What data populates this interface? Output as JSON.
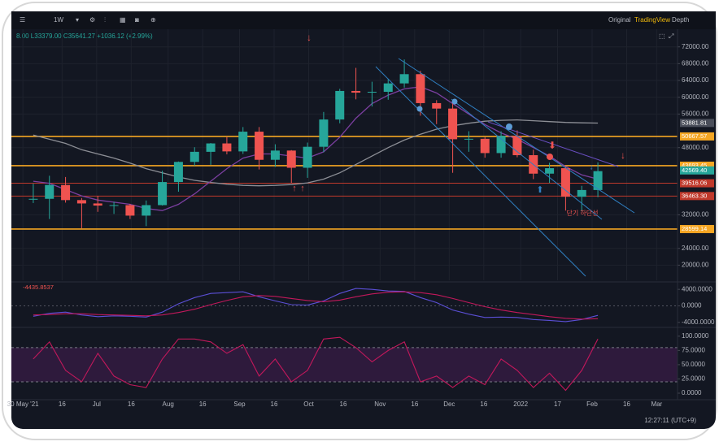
{
  "chart_data": {
    "type": "candlestick",
    "interval": "1W",
    "tabs": [
      "Original",
      "TradingView",
      "Depth"
    ],
    "legend": "8.00 L33379.00 C35641.27 +1036.12 (+2.99%)",
    "annotation": "단기 하단선",
    "clock": "12:27:11 (UTC+9)",
    "up_color": "#26a69a",
    "down_color": "#ef5350",
    "xlim": [
      "2021-05-25",
      "2022-03-09"
    ],
    "xticks": [
      {
        "value": "2021-05-30",
        "label": "30 May '21"
      },
      {
        "value": "2021-06-16",
        "label": "16"
      },
      {
        "value": "2021-07-01",
        "label": "Jul"
      },
      {
        "value": "2021-07-16",
        "label": "16"
      },
      {
        "value": "2021-08-01",
        "label": "Aug"
      },
      {
        "value": "2021-08-16",
        "label": "16"
      },
      {
        "value": "2021-09-01",
        "label": "Sep"
      },
      {
        "value": "2021-09-16",
        "label": "16"
      },
      {
        "value": "2021-10-01",
        "label": "Oct"
      },
      {
        "value": "2021-10-16",
        "label": "16"
      },
      {
        "value": "2021-11-01",
        "label": "Nov"
      },
      {
        "value": "2021-11-16",
        "label": "16"
      },
      {
        "value": "2021-12-01",
        "label": "Dec"
      },
      {
        "value": "2021-12-16",
        "label": "16"
      },
      {
        "value": "2022-01-01",
        "label": "2022"
      },
      {
        "value": "2022-01-17",
        "label": "17"
      },
      {
        "value": "2022-02-01",
        "label": "Feb"
      },
      {
        "value": "2022-02-16",
        "label": "16"
      },
      {
        "value": "2022-03-01",
        "label": "Mar"
      }
    ],
    "ylim": [
      16400,
      76200
    ],
    "yticks": [
      {
        "value": 72000,
        "label": "72000.00"
      },
      {
        "value": 68000,
        "label": "68000.00"
      },
      {
        "value": 64000,
        "label": "64000.00"
      },
      {
        "value": 60000,
        "label": "60000.00"
      },
      {
        "value": 56000,
        "label": "56000.00"
      },
      {
        "value": 48000,
        "label": "48000.00"
      },
      {
        "value": 32000,
        "label": "32000.00"
      },
      {
        "value": 24000,
        "label": "24000.00"
      },
      {
        "value": 20000,
        "label": "20000.00"
      }
    ],
    "levels": [
      {
        "value": 53881.81,
        "label": "53881.81",
        "color": "#4a4e5a",
        "line": false
      },
      {
        "value": 50667.57,
        "label": "50667.57",
        "color": "#f5a623",
        "line": true
      },
      {
        "value": 43693.45,
        "label": "43693.45",
        "color": "#f5a623",
        "line": true
      },
      {
        "value": 42569.4,
        "label": "42569.40",
        "color": "#26a69a",
        "line": false
      },
      {
        "value": 39516.06,
        "label": "39516.06",
        "color": "#c0392b",
        "line": true
      },
      {
        "value": 36463.3,
        "label": "36463.30",
        "color": "#c0392b",
        "line": true
      },
      {
        "value": 28599.14,
        "label": "28599.14",
        "color": "#f5a623",
        "line": true
      }
    ],
    "x": [
      "2021-05-31",
      "2021-06-07",
      "2021-06-14",
      "2021-06-21",
      "2021-06-28",
      "2021-07-05",
      "2021-07-12",
      "2021-07-19",
      "2021-07-26",
      "2021-08-02",
      "2021-08-09",
      "2021-08-16",
      "2021-08-23",
      "2021-08-30",
      "2021-09-06",
      "2021-09-13",
      "2021-09-20",
      "2021-09-27",
      "2021-10-04",
      "2021-10-11",
      "2021-10-18",
      "2021-10-25",
      "2021-11-01",
      "2021-11-08",
      "2021-11-15",
      "2021-11-22",
      "2021-11-29",
      "2021-12-06",
      "2021-12-13",
      "2021-12-20",
      "2021-12-27",
      "2022-01-03",
      "2022-01-10",
      "2022-01-17",
      "2022-01-24",
      "2022-01-31"
    ],
    "open": [
      35600,
      35800,
      39100,
      35500,
      34700,
      34200,
      34300,
      31800,
      34300,
      39800,
      44600,
      47000,
      49000,
      47100,
      51800,
      45100,
      47300,
      43200,
      48200,
      54700,
      61500,
      61100,
      61300,
      63300,
      65500,
      58600,
      57300,
      50000,
      50100,
      46700,
      50800,
      46200,
      41800,
      43100,
      36300,
      37900
    ],
    "high": [
      39400,
      41300,
      41000,
      36000,
      36500,
      35100,
      34600,
      35400,
      42500,
      44700,
      48100,
      49100,
      50500,
      52900,
      52900,
      48800,
      47400,
      49200,
      56500,
      62000,
      67000,
      63700,
      64300,
      69000,
      66300,
      59300,
      59100,
      51900,
      50500,
      51900,
      52100,
      47500,
      44400,
      43500,
      38900,
      44500
    ],
    "low": [
      34800,
      31000,
      34900,
      28800,
      32700,
      32200,
      31000,
      29300,
      34200,
      37500,
      43700,
      43900,
      46400,
      46500,
      42800,
      43400,
      39600,
      40800,
      46900,
      53800,
      59500,
      57800,
      59400,
      62300,
      55600,
      53600,
      42000,
      47000,
      45600,
      45600,
      45700,
      40500,
      39600,
      33000,
      32900,
      36200
    ],
    "close": [
      35800,
      39100,
      35500,
      34700,
      34200,
      34300,
      31800,
      34300,
      39800,
      44600,
      47000,
      49000,
      47100,
      51800,
      45100,
      47300,
      43200,
      48200,
      54700,
      61500,
      61100,
      61300,
      63300,
      65500,
      58600,
      57300,
      50000,
      50100,
      46700,
      50800,
      46200,
      41800,
      43100,
      36300,
      37900,
      42400
    ],
    "lines": [
      {
        "color": "#8d8f96",
        "values": [
          51000,
          50000,
          49000,
          47500,
          46500,
          45500,
          44300,
          43000,
          42000,
          41000,
          40200,
          39700,
          39300,
          39000,
          38900,
          39000,
          39200,
          39600,
          40500,
          42000,
          44000,
          46000,
          48000,
          49800,
          51200,
          52400,
          53200,
          53800,
          54300,
          54500,
          54600,
          54400,
          54200,
          54000,
          53900,
          53850
        ]
      },
      {
        "color": "#7b3fa0",
        "values": [
          40000,
          39500,
          38000,
          36500,
          35500,
          35000,
          34500,
          33500,
          33000,
          34500,
          37000,
          40000,
          43000,
          45500,
          46500,
          46500,
          46000,
          45500,
          47000,
          50500,
          55000,
          58500,
          60500,
          62000,
          62500,
          61000,
          58500,
          56000,
          53500,
          51500,
          50000,
          48000,
          46000,
          43500,
          41500,
          40500
        ]
      }
    ],
    "macd": {
      "label": "-4435.8537",
      "ylim": [
        -5000,
        5600
      ],
      "yticks": [
        {
          "value": 4000,
          "label": "4000.0000"
        },
        {
          "value": 0,
          "label": "0.0000"
        },
        {
          "value": -4000,
          "label": "-4000.0000"
        }
      ],
      "series": [
        {
          "color": "#5b4fd6",
          "values": [
            -2500,
            -1800,
            -1500,
            -2200,
            -2600,
            -2400,
            -2500,
            -2700,
            -1500,
            500,
            2000,
            3000,
            3200,
            3400,
            2200,
            1200,
            300,
            200,
            1200,
            3000,
            4200,
            4000,
            3600,
            3500,
            2000,
            800,
            -1000,
            -2000,
            -2800,
            -2700,
            -2800,
            -3300,
            -3500,
            -3800,
            -3300,
            -2300
          ]
        },
        {
          "color": "#c2185b",
          "values": [
            -2200,
            -2100,
            -1900,
            -1900,
            -2100,
            -2200,
            -2300,
            -2400,
            -2200,
            -1600,
            -800,
            300,
            1300,
            2200,
            2500,
            2300,
            1800,
            1300,
            1000,
            1400,
            2200,
            2900,
            3300,
            3400,
            3200,
            2700,
            1800,
            800,
            -200,
            -1000,
            -1600,
            -2100,
            -2600,
            -3000,
            -3200,
            -3100
          ]
        }
      ]
    },
    "stoch": {
      "ylim": [
        -10,
        114
      ],
      "yticks": [
        {
          "value": 100,
          "label": "100.0000"
        },
        {
          "value": 75,
          "label": "75.0000"
        },
        {
          "value": 50,
          "label": "50.0000"
        },
        {
          "value": 25,
          "label": "25.0000"
        },
        {
          "value": 0,
          "label": "0.0000"
        }
      ],
      "band": [
        20,
        80
      ],
      "color": "#c2185b",
      "values": [
        60,
        90,
        40,
        20,
        70,
        30,
        15,
        10,
        60,
        95,
        95,
        90,
        70,
        85,
        30,
        60,
        20,
        40,
        95,
        98,
        80,
        55,
        75,
        90,
        20,
        30,
        10,
        30,
        15,
        60,
        40,
        10,
        35,
        5,
        40,
        95
      ]
    }
  }
}
